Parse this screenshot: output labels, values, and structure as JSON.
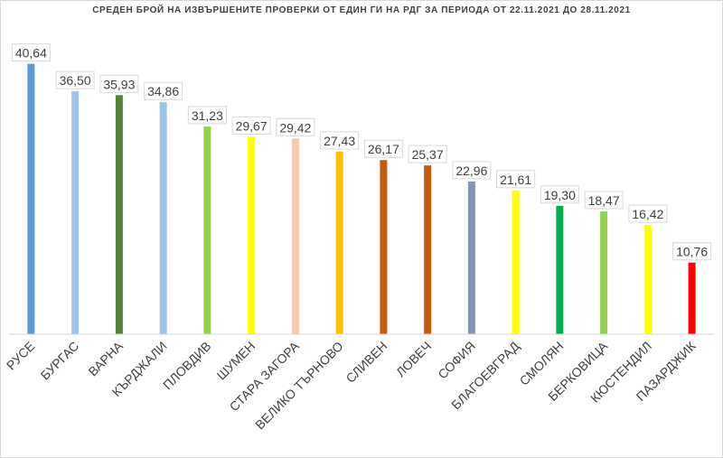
{
  "chart_data": {
    "type": "bar",
    "title": "СРЕДЕН БРОЙ НА ИЗВЪРШЕНИТЕ ПРОВЕРКИ ОТ ЕДИН ГИ НА РДГ ЗА ПЕРИОДА ОТ 22.11.2021 ДО 28.11.2021",
    "categories": [
      "РУСЕ",
      "БУРГАС",
      "ВАРНА",
      "КЪРДЖАЛИ",
      "ПЛОВДИВ",
      "ШУМЕН",
      "СТАРА ЗАГОРА",
      "ВЕЛИКО ТЪРНОВО",
      "СЛИВЕН",
      "ЛОВЕЧ",
      "СОФИЯ",
      "БЛАГОЕВГРАД",
      "СМОЛЯН",
      "БЕРКОВИЦА",
      "КЮСТЕНДИЛ",
      "ПАЗАРДЖИК"
    ],
    "values": [
      40.64,
      36.5,
      35.93,
      34.86,
      31.23,
      29.67,
      29.42,
      27.43,
      26.17,
      25.37,
      22.96,
      21.61,
      19.3,
      18.47,
      16.42,
      10.76
    ],
    "value_labels": [
      "40,64",
      "36,50",
      "35,93",
      "34,86",
      "31,23",
      "29,67",
      "29,42",
      "27,43",
      "26,17",
      "25,37",
      "22,96",
      "21,61",
      "19,30",
      "18,47",
      "16,42",
      "10,76"
    ],
    "colors": [
      "#5b9bd5",
      "#9dc3e6",
      "#548235",
      "#9dc3e6",
      "#92d050",
      "#ffff00",
      "#f8cbad",
      "#ffc000",
      "#c55a11",
      "#c55a11",
      "#8497b0",
      "#ffff00",
      "#00b050",
      "#92d050",
      "#ffff00",
      "#ff0000"
    ],
    "xlabel": "",
    "ylabel": "",
    "ylim": [
      0,
      45
    ],
    "grid": false,
    "legend": "none"
  }
}
